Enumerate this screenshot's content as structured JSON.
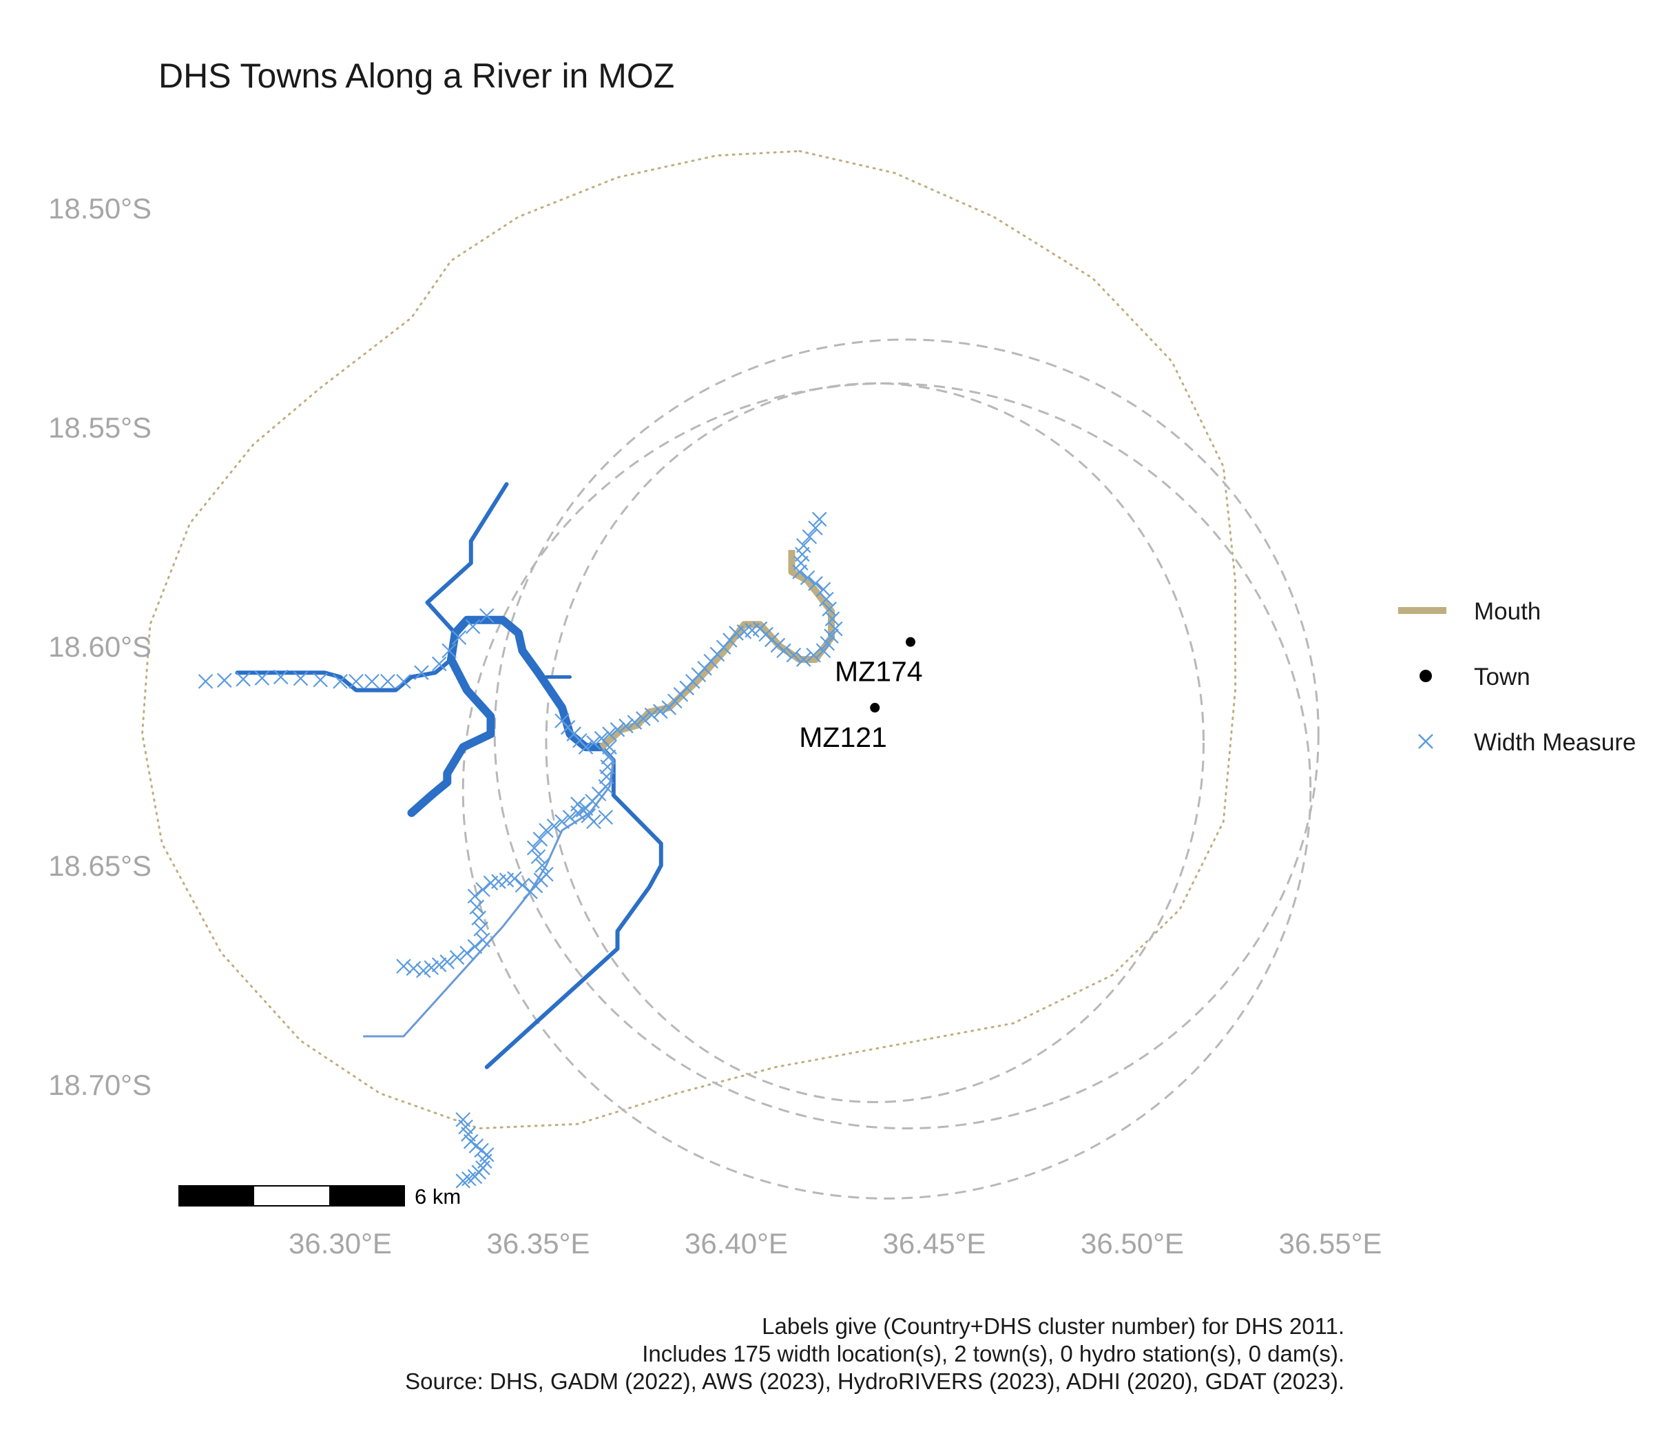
{
  "chart_data": {
    "type": "map",
    "title": "DHS Towns Along a River in MOZ",
    "x_axis": {
      "ticks": [
        {
          "value": 36.3,
          "label": "36.30°E"
        },
        {
          "value": 36.35,
          "label": "36.35°E"
        },
        {
          "value": 36.4,
          "label": "36.40°E"
        },
        {
          "value": 36.45,
          "label": "36.45°E"
        },
        {
          "value": 36.5,
          "label": "36.50°E"
        },
        {
          "value": 36.55,
          "label": "36.55°E"
        }
      ],
      "range": [
        36.25,
        36.57
      ]
    },
    "y_axis": {
      "ticks": [
        {
          "value": -18.5,
          "label": "18.50°S"
        },
        {
          "value": -18.55,
          "label": "18.55°S"
        },
        {
          "value": -18.6,
          "label": "18.60°S"
        },
        {
          "value": -18.65,
          "label": "18.65°S"
        },
        {
          "value": -18.7,
          "label": "18.70°S"
        }
      ],
      "range": [
        -18.725,
        -18.49
      ]
    },
    "grid": false,
    "legend": {
      "placement": "right",
      "entries": [
        {
          "name": "Mouth",
          "symbol": "line",
          "color": "#bfae7f"
        },
        {
          "name": "Town",
          "symbol": "point",
          "color": "#000000"
        },
        {
          "name": "Width Measure",
          "symbol": "cross",
          "color": "#5b9be0"
        }
      ]
    },
    "towns": [
      {
        "label": "MZ174",
        "lon": 36.444,
        "lat": -18.599
      },
      {
        "label": "MZ121",
        "lon": 36.435,
        "lat": -18.614
      }
    ],
    "scale_bar": {
      "label": "6 km"
    },
    "colors": {
      "river_dark": "#2b6fc6",
      "river_light": "#6b9ad6",
      "mouth": "#bfae7f",
      "width_measure": "#5b9be0",
      "buffer_dotted": "#bfae7f",
      "buffer_dashed": "#b8b8b8"
    },
    "rivers": [
      {
        "kind": "dark",
        "width": 6,
        "points": [
          [
            36.342,
            -18.563
          ],
          [
            36.333,
            -18.576
          ],
          [
            36.333,
            -18.581
          ],
          [
            36.322,
            -18.59
          ],
          [
            36.329,
            -18.597
          ]
        ]
      },
      {
        "kind": "dark",
        "width": 12,
        "points": [
          [
            36.329,
            -18.597
          ],
          [
            36.332,
            -18.594
          ],
          [
            36.341,
            -18.594
          ],
          [
            36.345,
            -18.597
          ],
          [
            36.346,
            -18.601
          ],
          [
            36.35,
            -18.606
          ],
          [
            36.353,
            -18.61
          ],
          [
            36.356,
            -18.614
          ],
          [
            36.358,
            -18.62
          ],
          [
            36.362,
            -18.623
          ],
          [
            36.366,
            -18.623
          ]
        ]
      },
      {
        "kind": "dark",
        "width": 5,
        "points": [
          [
            36.352,
            -18.607
          ],
          [
            36.358,
            -18.607
          ]
        ]
      },
      {
        "kind": "dark",
        "width": 12,
        "points": [
          [
            36.329,
            -18.597
          ],
          [
            36.328,
            -18.603
          ],
          [
            36.332,
            -18.61
          ],
          [
            36.338,
            -18.616
          ],
          [
            36.338,
            -18.62
          ],
          [
            36.331,
            -18.623
          ],
          [
            36.327,
            -18.629
          ],
          [
            36.327,
            -18.631
          ],
          [
            36.323,
            -18.634
          ],
          [
            36.318,
            -18.638
          ]
        ]
      },
      {
        "kind": "dark",
        "width": 6,
        "points": [
          [
            36.274,
            -18.606
          ],
          [
            36.296,
            -18.606
          ],
          [
            36.3,
            -18.607
          ],
          [
            36.304,
            -18.61
          ],
          [
            36.314,
            -18.61
          ],
          [
            36.318,
            -18.607
          ],
          [
            36.324,
            -18.606
          ],
          [
            36.328,
            -18.603
          ]
        ]
      },
      {
        "kind": "dark",
        "width": 6,
        "points": [
          [
            36.366,
            -18.623
          ],
          [
            36.369,
            -18.626
          ],
          [
            36.369,
            -18.634
          ],
          [
            36.381,
            -18.645
          ],
          [
            36.381,
            -18.65
          ],
          [
            36.378,
            -18.655
          ],
          [
            36.37,
            -18.665
          ],
          [
            36.37,
            -18.669
          ],
          [
            36.337,
            -18.696
          ]
        ]
      },
      {
        "kind": "light",
        "width": 3,
        "points": [
          [
            36.366,
            -18.623
          ],
          [
            36.369,
            -18.626
          ],
          [
            36.368,
            -18.632
          ],
          [
            36.363,
            -18.638
          ],
          [
            36.356,
            -18.642
          ],
          [
            36.352,
            -18.65
          ],
          [
            36.348,
            -18.656
          ],
          [
            36.341,
            -18.664
          ],
          [
            36.325,
            -18.68
          ],
          [
            36.316,
            -18.689
          ],
          [
            36.306,
            -18.689
          ]
        ]
      }
    ],
    "mouth_segment": {
      "points": [
        [
          36.366,
          -18.623
        ],
        [
          36.371,
          -18.619
        ],
        [
          36.375,
          -18.618
        ],
        [
          36.378,
          -18.615
        ],
        [
          36.383,
          -18.614
        ],
        [
          36.39,
          -18.608
        ],
        [
          36.397,
          -18.601
        ],
        [
          36.402,
          -18.595
        ],
        [
          36.406,
          -18.595
        ],
        [
          36.411,
          -18.6
        ],
        [
          36.416,
          -18.603
        ],
        [
          36.42,
          -18.603
        ],
        [
          36.424,
          -18.598
        ],
        [
          36.424,
          -18.592
        ],
        [
          36.418,
          -18.585
        ],
        [
          36.414,
          -18.583
        ],
        [
          36.414,
          -18.578
        ]
      ]
    },
    "width_measures": {
      "note": "175 width locations sampled along river tracks",
      "tracks": [
        {
          "density": 0.0045,
          "points": [
            [
              36.266,
              -18.608
            ],
            [
              36.285,
              -18.607
            ],
            [
              36.3,
              -18.608
            ],
            [
              36.316,
              -18.608
            ],
            [
              36.325,
              -18.604
            ],
            [
              36.33,
              -18.598
            ],
            [
              36.337,
              -18.593
            ]
          ]
        },
        {
          "density": 0.0022,
          "points": [
            [
              36.356,
              -18.617
            ],
            [
              36.362,
              -18.623
            ],
            [
              36.37,
              -18.619
            ],
            [
              36.383,
              -18.614
            ],
            [
              36.392,
              -18.605
            ],
            [
              36.4,
              -18.597
            ],
            [
              36.406,
              -18.596
            ],
            [
              36.412,
              -18.601
            ],
            [
              36.417,
              -18.603
            ],
            [
              36.422,
              -18.601
            ],
            [
              36.425,
              -18.596
            ],
            [
              36.422,
              -18.587
            ],
            [
              36.416,
              -18.583
            ],
            [
              36.417,
              -18.577
            ],
            [
              36.42,
              -18.573
            ],
            [
              36.421,
              -18.571
            ]
          ]
        },
        {
          "density": 0.0022,
          "points": [
            [
              36.368,
              -18.623
            ],
            [
              36.367,
              -18.632
            ],
            [
              36.362,
              -18.637
            ],
            [
              36.356,
              -18.64
            ],
            [
              36.352,
              -18.642
            ],
            [
              36.349,
              -18.646
            ],
            [
              36.352,
              -18.652
            ],
            [
              36.348,
              -18.656
            ],
            [
              36.344,
              -18.653
            ],
            [
              36.338,
              -18.654
            ],
            [
              36.334,
              -18.657
            ],
            [
              36.335,
              -18.662
            ],
            [
              36.336,
              -18.667
            ],
            [
              36.332,
              -18.67
            ],
            [
              36.327,
              -18.672
            ],
            [
              36.321,
              -18.674
            ],
            [
              36.316,
              -18.673
            ]
          ]
        },
        {
          "density": 0.0022,
          "points": [
            [
              36.36,
              -18.636
            ],
            [
              36.364,
              -18.64
            ],
            [
              36.367,
              -18.639
            ]
          ]
        },
        {
          "density": 0.0018,
          "points": [
            [
              36.331,
              -18.708
            ],
            [
              36.333,
              -18.713
            ],
            [
              36.337,
              -18.716
            ],
            [
              36.336,
              -18.719
            ],
            [
              36.334,
              -18.721
            ],
            [
              36.331,
              -18.722
            ]
          ]
        }
      ]
    },
    "buffers": [
      {
        "style": "dotted",
        "points": [
          [
            36.416,
            -18.487
          ],
          [
            36.44,
            -18.492
          ],
          [
            36.465,
            -18.502
          ],
          [
            36.49,
            -18.516
          ],
          [
            36.51,
            -18.535
          ],
          [
            36.523,
            -18.559
          ],
          [
            36.526,
            -18.585
          ],
          [
            36.526,
            -18.61
          ],
          [
            36.523,
            -18.64
          ],
          [
            36.512,
            -18.66
          ],
          [
            36.495,
            -18.675
          ],
          [
            36.47,
            -18.686
          ],
          [
            36.44,
            -18.691
          ],
          [
            36.41,
            -18.696
          ],
          [
            36.385,
            -18.702
          ],
          [
            36.36,
            -18.709
          ],
          [
            36.335,
            -18.71
          ],
          [
            36.31,
            -18.702
          ],
          [
            36.29,
            -18.69
          ],
          [
            36.27,
            -18.67
          ],
          [
            36.255,
            -18.645
          ],
          [
            36.25,
            -18.62
          ],
          [
            36.252,
            -18.595
          ],
          [
            36.262,
            -18.572
          ],
          [
            36.278,
            -18.554
          ],
          [
            36.295,
            -18.541
          ],
          [
            36.308,
            -18.532
          ],
          [
            36.318,
            -18.525
          ],
          [
            36.328,
            -18.512
          ],
          [
            36.345,
            -18.502
          ],
          [
            36.37,
            -18.493
          ],
          [
            36.395,
            -18.488
          ],
          [
            36.416,
            -18.487
          ]
        ]
      },
      {
        "style": "dashed",
        "center": [
          36.443,
          -18.62
        ],
        "rx": 0.104,
        "ry": 0.09
      },
      {
        "style": "dashed",
        "center": [
          36.438,
          -18.633
        ],
        "rx": 0.107,
        "ry": 0.093
      },
      {
        "style": "dashed",
        "center": [
          36.435,
          -18.622
        ],
        "rx": 0.083,
        "ry": 0.082
      }
    ]
  },
  "caption": {
    "lines": [
      "Labels give (Country+DHS cluster number) for DHS 2011.",
      "Includes 175 width location(s), 2 town(s), 0 hydro station(s), 0 dam(s).",
      "Source: DHS, GADM (2022), AWS (2023), HydroRIVERS (2023), ADHI (2020), GDAT (2023)."
    ]
  }
}
